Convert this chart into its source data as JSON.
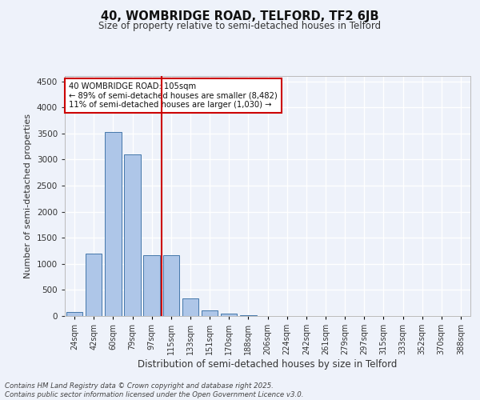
{
  "title1": "40, WOMBRIDGE ROAD, TELFORD, TF2 6JB",
  "title2": "Size of property relative to semi-detached houses in Telford",
  "xlabel": "Distribution of semi-detached houses by size in Telford",
  "ylabel": "Number of semi-detached properties",
  "bin_labels": [
    "24sqm",
    "42sqm",
    "60sqm",
    "79sqm",
    "97sqm",
    "115sqm",
    "133sqm",
    "151sqm",
    "170sqm",
    "188sqm",
    "206sqm",
    "224sqm",
    "242sqm",
    "261sqm",
    "279sqm",
    "297sqm",
    "315sqm",
    "333sqm",
    "352sqm",
    "370sqm",
    "388sqm"
  ],
  "bar_values": [
    75,
    1200,
    3520,
    3100,
    1160,
    1160,
    340,
    100,
    50,
    20,
    5,
    2,
    1,
    0,
    0,
    0,
    0,
    0,
    0,
    0,
    0
  ],
  "bar_color": "#aec6e8",
  "bar_edge_color": "#4477aa",
  "vline_x": 4.5,
  "vline_color": "#cc0000",
  "annotation_title": "40 WOMBRIDGE ROAD: 105sqm",
  "annotation_line1": "← 89% of semi-detached houses are smaller (8,482)",
  "annotation_line2": "11% of semi-detached houses are larger (1,030) →",
  "annotation_box_color": "#cc0000",
  "ylim": [
    0,
    4600
  ],
  "yticks": [
    0,
    500,
    1000,
    1500,
    2000,
    2500,
    3000,
    3500,
    4000,
    4500
  ],
  "background_color": "#eef2fa",
  "grid_color": "#ffffff",
  "footer": "Contains HM Land Registry data © Crown copyright and database right 2025.\nContains public sector information licensed under the Open Government Licence v3.0."
}
